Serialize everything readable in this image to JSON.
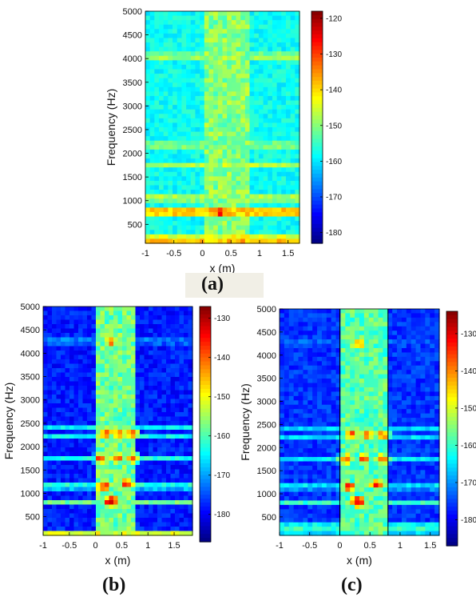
{
  "chart_data": [
    {
      "type": "heatmap",
      "panel": "(a)",
      "title": "",
      "xlabel": "x (m)",
      "ylabel": "Frequency (Hz)",
      "xlim": [
        -1.0,
        1.7
      ],
      "ylim": [
        100,
        5000
      ],
      "xticks": [
        "-1",
        "-0.5",
        "0",
        "0.5",
        "1",
        "1.5"
      ],
      "xtick_values": [
        -1,
        -0.5,
        0,
        0.5,
        1,
        1.5
      ],
      "yticks": [
        "500",
        "1000",
        "1500",
        "2000",
        "2500",
        "3000",
        "3500",
        "4000",
        "4500",
        "5000"
      ],
      "ytick_values": [
        500,
        1000,
        1500,
        2000,
        2500,
        3000,
        3500,
        4000,
        4500,
        5000
      ],
      "colorbar": {
        "min": -183,
        "max": -118,
        "ticks": [
          "-120",
          "-130",
          "-140",
          "-150",
          "-160",
          "-170",
          "-180"
        ],
        "tick_values": [
          -120,
          -130,
          -140,
          -150,
          -160,
          -170,
          -180
        ]
      },
      "plate_region_m": [
        0.0,
        0.8
      ],
      "levels": {
        "background": -158,
        "plate": -150
      },
      "bands": [
        {
          "freq": 150,
          "level": -138,
          "width": 120
        },
        {
          "freq": 760,
          "level": -132,
          "width": 60
        },
        {
          "freq": 1050,
          "level": -145,
          "width": 80
        },
        {
          "freq": 1750,
          "level": -147,
          "width": 60
        },
        {
          "freq": 2170,
          "level": -144,
          "width": 60
        },
        {
          "freq": 4050,
          "level": -146,
          "width": 80
        }
      ],
      "hotspots": [
        {
          "x": 0.3,
          "freq": 760,
          "level": -125
        },
        {
          "x": 0.2,
          "freq": 1700,
          "level": -145
        },
        {
          "x": 0.55,
          "freq": 1700,
          "level": -145
        }
      ],
      "boundary_lines": false
    },
    {
      "type": "heatmap",
      "panel": "(b)",
      "title": "",
      "xlabel": "x (m)",
      "ylabel": "Frequency (Hz)",
      "xlim": [
        -1.0,
        1.85
      ],
      "ylim": [
        100,
        5000
      ],
      "xticks": [
        "-1",
        "-0.5",
        "0",
        "0.5",
        "1",
        "1.5"
      ],
      "xtick_values": [
        -1,
        -0.5,
        0,
        0.5,
        1,
        1.5
      ],
      "yticks": [
        "500",
        "1000",
        "1500",
        "2000",
        "2500",
        "3000",
        "3500",
        "4000",
        "4500",
        "5000"
      ],
      "ytick_values": [
        500,
        1000,
        1500,
        2000,
        2500,
        3000,
        3500,
        4000,
        4500,
        5000
      ],
      "colorbar": {
        "min": -187,
        "max": -127,
        "ticks": [
          "-130",
          "-140",
          "-150",
          "-160",
          "-170",
          "-180"
        ],
        "tick_values": [
          -130,
          -140,
          -150,
          -160,
          -170,
          -180
        ]
      },
      "plate_region_m": [
        0.0,
        0.8
      ],
      "levels": {
        "background": -178,
        "plate": -158
      },
      "bands": [
        {
          "freq": 120,
          "level": -150,
          "width": 80
        },
        {
          "freq": 800,
          "level": -158,
          "width": 60
        },
        {
          "freq": 1150,
          "level": -160,
          "width": 70
        },
        {
          "freq": 1750,
          "level": -163,
          "width": 60
        },
        {
          "freq": 2200,
          "level": -163,
          "width": 60
        },
        {
          "freq": 2400,
          "level": -165,
          "width": 50
        },
        {
          "freq": 4250,
          "level": -168,
          "width": 70
        }
      ],
      "hotspots": [
        {
          "x": 0.3,
          "freq": 830,
          "level": -130
        },
        {
          "x": 0.15,
          "freq": 1150,
          "level": -136
        },
        {
          "x": 0.6,
          "freq": 1200,
          "level": -136
        },
        {
          "x": 0.1,
          "freq": 1750,
          "level": -138
        },
        {
          "x": 0.4,
          "freq": 1750,
          "level": -138
        },
        {
          "x": 0.7,
          "freq": 1750,
          "level": -138
        },
        {
          "x": 0.2,
          "freq": 2280,
          "level": -137
        },
        {
          "x": 0.45,
          "freq": 2280,
          "level": -137
        },
        {
          "x": 0.7,
          "freq": 2280,
          "level": -137
        },
        {
          "x": 0.3,
          "freq": 4250,
          "level": -140
        }
      ],
      "boundary_lines": false
    },
    {
      "type": "heatmap",
      "panel": "(c)",
      "title": "",
      "xlabel": "x (m)",
      "ylabel": "Frequency (Hz)",
      "xlim": [
        -1.0,
        1.65
      ],
      "ylim": [
        100,
        5000
      ],
      "xticks": [
        "-1",
        "-0.5",
        "0",
        "0.5",
        "1",
        "1.5"
      ],
      "xtick_values": [
        -1,
        -0.5,
        0,
        0.5,
        1,
        1.5
      ],
      "yticks": [
        "500",
        "1000",
        "1500",
        "2000",
        "2500",
        "3000",
        "3500",
        "4000",
        "4500",
        "5000"
      ],
      "ytick_values": [
        500,
        1000,
        1500,
        2000,
        2500,
        3000,
        3500,
        4000,
        4500,
        5000
      ],
      "colorbar": {
        "min": -187,
        "max": -124,
        "ticks": [
          "-130",
          "-140",
          "-150",
          "-160",
          "-170",
          "-180"
        ],
        "tick_values": [
          -130,
          -140,
          -150,
          -160,
          -170,
          -180
        ]
      },
      "plate_region_m": [
        0.0,
        0.8
      ],
      "levels": {
        "background": -176,
        "plate": -158
      },
      "bands": [
        {
          "freq": 250,
          "level": -160,
          "width": 150
        },
        {
          "freq": 800,
          "level": -160,
          "width": 60
        },
        {
          "freq": 1150,
          "level": -162,
          "width": 70
        },
        {
          "freq": 1750,
          "level": -164,
          "width": 60
        },
        {
          "freq": 2200,
          "level": -164,
          "width": 60
        },
        {
          "freq": 2400,
          "level": -166,
          "width": 50
        },
        {
          "freq": 4250,
          "level": -169,
          "width": 70
        }
      ],
      "hotspots": [
        {
          "x": 0.3,
          "freq": 830,
          "level": -130
        },
        {
          "x": 0.15,
          "freq": 1150,
          "level": -136
        },
        {
          "x": 0.6,
          "freq": 1200,
          "level": -136
        },
        {
          "x": 0.1,
          "freq": 1750,
          "level": -138
        },
        {
          "x": 0.4,
          "freq": 1750,
          "level": -138
        },
        {
          "x": 0.7,
          "freq": 1750,
          "level": -138
        },
        {
          "x": 0.2,
          "freq": 2280,
          "level": -137
        },
        {
          "x": 0.45,
          "freq": 2280,
          "level": -137
        },
        {
          "x": 0.7,
          "freq": 2280,
          "level": -137
        },
        {
          "x": 0.3,
          "freq": 4250,
          "level": -140
        }
      ],
      "boundary_lines": true
    }
  ],
  "panel_labels": {
    "a": "(a)",
    "b": "(b)",
    "c": "(c)"
  },
  "colormap": "jet"
}
